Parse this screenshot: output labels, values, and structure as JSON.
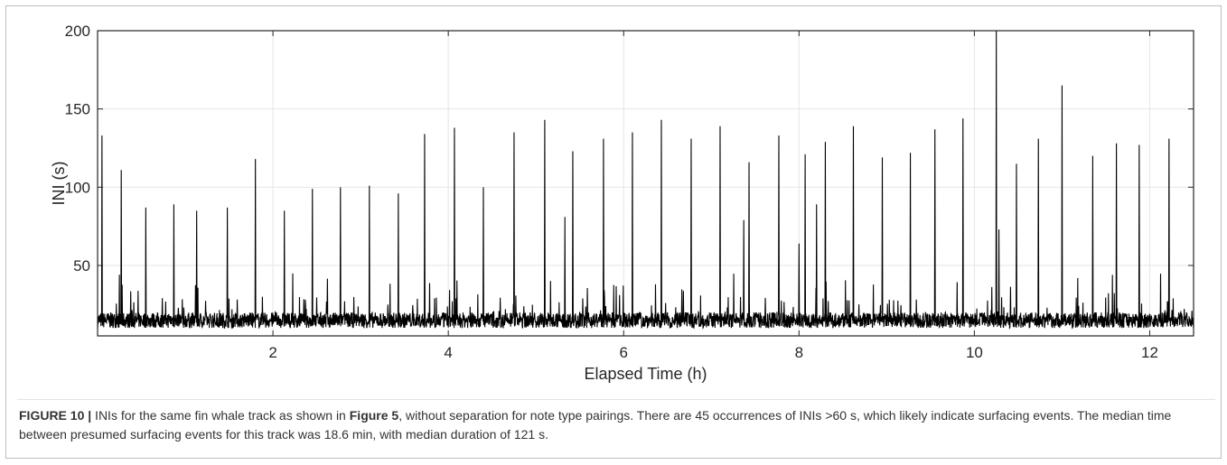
{
  "figure": {
    "caption_label": "FIGURE 10 |",
    "caption_part1": " INIs for the same fin whale track as shown in ",
    "caption_ref": "Figure 5",
    "caption_part2": ", without separation for note type pairings. There are 45 occurrences of INIs >60 s, which likely indicate surfacing events. The median time between presumed surfacing events for this track was 18.6 min, with median duration of 121 s."
  },
  "chart_data": {
    "type": "line",
    "title": "",
    "xlabel": "Elapsed Time (h)",
    "ylabel": "INI (s)",
    "xlim": [
      0,
      12.5
    ],
    "ylim": [
      5,
      200
    ],
    "xticks": [
      2,
      4,
      6,
      8,
      10,
      12
    ],
    "yticks": [
      50,
      100,
      150,
      200
    ],
    "grid": true,
    "color": "#000000",
    "baseline_range_s": [
      10,
      20
    ],
    "peaks": [
      {
        "x": 0.05,
        "y": 133
      },
      {
        "x": 0.27,
        "y": 111
      },
      {
        "x": 0.55,
        "y": 87
      },
      {
        "x": 0.87,
        "y": 89
      },
      {
        "x": 1.13,
        "y": 85
      },
      {
        "x": 1.48,
        "y": 87
      },
      {
        "x": 1.8,
        "y": 118
      },
      {
        "x": 2.13,
        "y": 85
      },
      {
        "x": 2.45,
        "y": 99
      },
      {
        "x": 2.77,
        "y": 100
      },
      {
        "x": 3.1,
        "y": 101
      },
      {
        "x": 3.43,
        "y": 96
      },
      {
        "x": 3.73,
        "y": 134
      },
      {
        "x": 4.07,
        "y": 138
      },
      {
        "x": 4.4,
        "y": 100
      },
      {
        "x": 4.75,
        "y": 135
      },
      {
        "x": 5.1,
        "y": 143
      },
      {
        "x": 5.33,
        "y": 81
      },
      {
        "x": 5.42,
        "y": 123
      },
      {
        "x": 5.77,
        "y": 131
      },
      {
        "x": 6.1,
        "y": 135
      },
      {
        "x": 6.43,
        "y": 143
      },
      {
        "x": 6.77,
        "y": 131
      },
      {
        "x": 7.1,
        "y": 139
      },
      {
        "x": 7.37,
        "y": 79
      },
      {
        "x": 7.43,
        "y": 116
      },
      {
        "x": 7.77,
        "y": 133
      },
      {
        "x": 8.0,
        "y": 64
      },
      {
        "x": 8.07,
        "y": 121
      },
      {
        "x": 8.2,
        "y": 89
      },
      {
        "x": 8.3,
        "y": 129
      },
      {
        "x": 8.62,
        "y": 139
      },
      {
        "x": 8.95,
        "y": 119
      },
      {
        "x": 9.27,
        "y": 122
      },
      {
        "x": 9.55,
        "y": 137
      },
      {
        "x": 9.87,
        "y": 144
      },
      {
        "x": 10.25,
        "y": 200
      },
      {
        "x": 10.28,
        "y": 73
      },
      {
        "x": 10.48,
        "y": 115
      },
      {
        "x": 10.73,
        "y": 131
      },
      {
        "x": 11.0,
        "y": 165
      },
      {
        "x": 11.35,
        "y": 120
      },
      {
        "x": 11.62,
        "y": 128
      },
      {
        "x": 11.88,
        "y": 127
      },
      {
        "x": 12.22,
        "y": 131
      }
    ]
  }
}
